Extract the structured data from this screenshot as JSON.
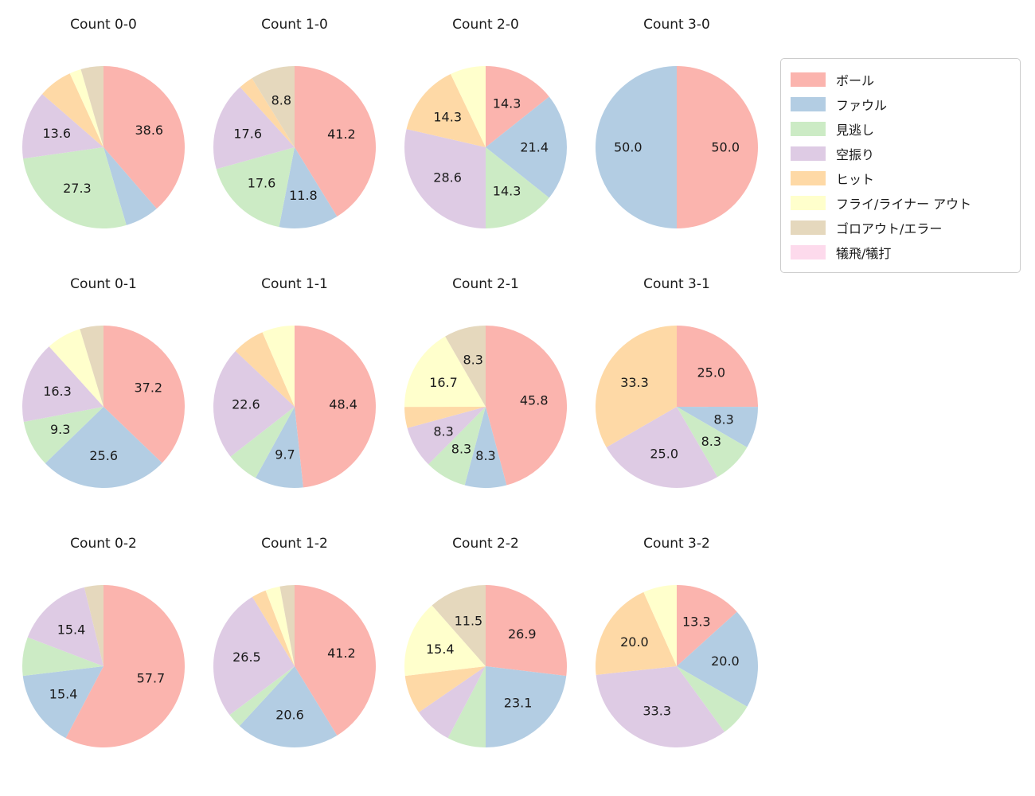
{
  "figure": {
    "background": "#ffffff",
    "text_color": "#1a1a1a",
    "layout": "3 rows x 4 columns of pie charts, legend box upper right outside charts"
  },
  "palette": {
    "ball": "#fbb4ae",
    "foul": "#b3cde3",
    "looking_strike": "#ccebc5",
    "swinging_strike": "#decbe4",
    "hit": "#fed9a6",
    "fly_liner_out": "#ffffcc",
    "ground_out_error": "#e5d8bd",
    "sac_fly_bunt": "#fddaec"
  },
  "legend": {
    "position": "upper-right",
    "border_color": "#cccccc",
    "items": [
      {
        "key": "ball",
        "label": "ボール",
        "color": "#fbb4ae"
      },
      {
        "key": "foul",
        "label": "ファウル",
        "color": "#b3cde3"
      },
      {
        "key": "looking_strike",
        "label": "見逃し",
        "color": "#ccebc5"
      },
      {
        "key": "swinging_strike",
        "label": "空振り",
        "color": "#decbe4"
      },
      {
        "key": "hit",
        "label": "ヒット",
        "color": "#fed9a6"
      },
      {
        "key": "fly_liner_out",
        "label": "フライ/ライナー アウト",
        "color": "#ffffcc"
      },
      {
        "key": "ground_out_error",
        "label": "ゴロアウト/エラー",
        "color": "#e5d8bd"
      },
      {
        "key": "sac_fly_bunt",
        "label": "犠飛/犠打",
        "color": "#fddaec"
      }
    ]
  },
  "chart_data": [
    {
      "type": "pie",
      "title": "Count 0-0",
      "start_angle_deg": 0,
      "direction": "clockwise-from-top",
      "units": "percent",
      "label_distance": 0.6,
      "slices": [
        {
          "key": "ball",
          "value": 38.6,
          "label": "38.6"
        },
        {
          "key": "foul",
          "value": 6.8,
          "label": ""
        },
        {
          "key": "looking_strike",
          "value": 27.3,
          "label": "27.3"
        },
        {
          "key": "swinging_strike",
          "value": 13.6,
          "label": "13.6"
        },
        {
          "key": "hit",
          "value": 6.8,
          "label": ""
        },
        {
          "key": "fly_liner_out",
          "value": 2.3,
          "label": ""
        },
        {
          "key": "ground_out_error",
          "value": 4.5,
          "label": ""
        }
      ]
    },
    {
      "type": "pie",
      "title": "Count 1-0",
      "start_angle_deg": 0,
      "direction": "clockwise-from-top",
      "units": "percent",
      "label_distance": 0.6,
      "slices": [
        {
          "key": "ball",
          "value": 41.2,
          "label": "41.2"
        },
        {
          "key": "foul",
          "value": 11.8,
          "label": "11.8"
        },
        {
          "key": "looking_strike",
          "value": 17.6,
          "label": "17.6"
        },
        {
          "key": "swinging_strike",
          "value": 17.6,
          "label": "17.6"
        },
        {
          "key": "hit",
          "value": 2.9,
          "label": ""
        },
        {
          "key": "ground_out_error",
          "value": 8.8,
          "label": "8.8"
        }
      ]
    },
    {
      "type": "pie",
      "title": "Count 2-0",
      "start_angle_deg": 0,
      "direction": "clockwise-from-top",
      "units": "percent",
      "label_distance": 0.6,
      "slices": [
        {
          "key": "ball",
          "value": 14.3,
          "label": "14.3"
        },
        {
          "key": "foul",
          "value": 21.4,
          "label": "21.4"
        },
        {
          "key": "looking_strike",
          "value": 14.3,
          "label": "14.3"
        },
        {
          "key": "swinging_strike",
          "value": 28.6,
          "label": "28.6"
        },
        {
          "key": "hit",
          "value": 14.3,
          "label": "14.3"
        },
        {
          "key": "fly_liner_out",
          "value": 7.1,
          "label": ""
        }
      ]
    },
    {
      "type": "pie",
      "title": "Count 3-0",
      "start_angle_deg": 0,
      "direction": "clockwise-from-top",
      "units": "percent",
      "label_distance": 0.6,
      "slices": [
        {
          "key": "ball",
          "value": 50.0,
          "label": "50.0"
        },
        {
          "key": "foul",
          "value": 50.0,
          "label": "50.0"
        }
      ]
    },
    {
      "type": "pie",
      "title": "Count 0-1",
      "start_angle_deg": 0,
      "direction": "clockwise-from-top",
      "units": "percent",
      "label_distance": 0.6,
      "slices": [
        {
          "key": "ball",
          "value": 37.2,
          "label": "37.2"
        },
        {
          "key": "foul",
          "value": 25.6,
          "label": "25.6"
        },
        {
          "key": "looking_strike",
          "value": 9.3,
          "label": "9.3"
        },
        {
          "key": "swinging_strike",
          "value": 16.3,
          "label": "16.3"
        },
        {
          "key": "fly_liner_out",
          "value": 7.0,
          "label": ""
        },
        {
          "key": "ground_out_error",
          "value": 4.7,
          "label": ""
        }
      ]
    },
    {
      "type": "pie",
      "title": "Count 1-1",
      "start_angle_deg": 0,
      "direction": "clockwise-from-top",
      "units": "percent",
      "label_distance": 0.6,
      "slices": [
        {
          "key": "ball",
          "value": 48.4,
          "label": "48.4"
        },
        {
          "key": "foul",
          "value": 9.7,
          "label": "9.7"
        },
        {
          "key": "looking_strike",
          "value": 6.5,
          "label": ""
        },
        {
          "key": "swinging_strike",
          "value": 22.6,
          "label": "22.6"
        },
        {
          "key": "hit",
          "value": 6.5,
          "label": ""
        },
        {
          "key": "fly_liner_out",
          "value": 6.5,
          "label": ""
        }
      ]
    },
    {
      "type": "pie",
      "title": "Count 2-1",
      "start_angle_deg": 0,
      "direction": "clockwise-from-top",
      "units": "percent",
      "label_distance": 0.6,
      "slices": [
        {
          "key": "ball",
          "value": 45.8,
          "label": "45.8"
        },
        {
          "key": "foul",
          "value": 8.3,
          "label": "8.3"
        },
        {
          "key": "looking_strike",
          "value": 8.3,
          "label": "8.3"
        },
        {
          "key": "swinging_strike",
          "value": 8.3,
          "label": "8.3"
        },
        {
          "key": "hit",
          "value": 4.2,
          "label": ""
        },
        {
          "key": "fly_liner_out",
          "value": 16.7,
          "label": "16.7"
        },
        {
          "key": "ground_out_error",
          "value": 8.3,
          "label": "8.3"
        }
      ]
    },
    {
      "type": "pie",
      "title": "Count 3-1",
      "start_angle_deg": 0,
      "direction": "clockwise-from-top",
      "units": "percent",
      "label_distance": 0.6,
      "slices": [
        {
          "key": "ball",
          "value": 25.0,
          "label": "25.0"
        },
        {
          "key": "foul",
          "value": 8.3,
          "label": "8.3"
        },
        {
          "key": "looking_strike",
          "value": 8.3,
          "label": "8.3"
        },
        {
          "key": "swinging_strike",
          "value": 25.0,
          "label": "25.0"
        },
        {
          "key": "hit",
          "value": 33.3,
          "label": "33.3"
        }
      ]
    },
    {
      "type": "pie",
      "title": "Count 0-2",
      "start_angle_deg": 0,
      "direction": "clockwise-from-top",
      "units": "percent",
      "label_distance": 0.6,
      "slices": [
        {
          "key": "ball",
          "value": 57.7,
          "label": "57.7"
        },
        {
          "key": "foul",
          "value": 15.4,
          "label": "15.4"
        },
        {
          "key": "looking_strike",
          "value": 7.7,
          "label": ""
        },
        {
          "key": "swinging_strike",
          "value": 15.4,
          "label": "15.4"
        },
        {
          "key": "ground_out_error",
          "value": 3.8,
          "label": ""
        }
      ]
    },
    {
      "type": "pie",
      "title": "Count 1-2",
      "start_angle_deg": 0,
      "direction": "clockwise-from-top",
      "units": "percent",
      "label_distance": 0.6,
      "slices": [
        {
          "key": "ball",
          "value": 41.2,
          "label": "41.2"
        },
        {
          "key": "foul",
          "value": 20.6,
          "label": "20.6"
        },
        {
          "key": "looking_strike",
          "value": 2.9,
          "label": ""
        },
        {
          "key": "swinging_strike",
          "value": 26.5,
          "label": "26.5"
        },
        {
          "key": "hit",
          "value": 2.9,
          "label": ""
        },
        {
          "key": "fly_liner_out",
          "value": 2.9,
          "label": ""
        },
        {
          "key": "ground_out_error",
          "value": 2.9,
          "label": ""
        }
      ]
    },
    {
      "type": "pie",
      "title": "Count 2-2",
      "start_angle_deg": 0,
      "direction": "clockwise-from-top",
      "units": "percent",
      "label_distance": 0.6,
      "slices": [
        {
          "key": "ball",
          "value": 26.9,
          "label": "26.9"
        },
        {
          "key": "foul",
          "value": 23.1,
          "label": "23.1"
        },
        {
          "key": "looking_strike",
          "value": 7.7,
          "label": ""
        },
        {
          "key": "swinging_strike",
          "value": 7.7,
          "label": ""
        },
        {
          "key": "hit",
          "value": 7.7,
          "label": ""
        },
        {
          "key": "fly_liner_out",
          "value": 15.4,
          "label": "15.4"
        },
        {
          "key": "ground_out_error",
          "value": 11.5,
          "label": "11.5"
        }
      ]
    },
    {
      "type": "pie",
      "title": "Count 3-2",
      "start_angle_deg": 0,
      "direction": "clockwise-from-top",
      "units": "percent",
      "label_distance": 0.6,
      "slices": [
        {
          "key": "ball",
          "value": 13.3,
          "label": "13.3"
        },
        {
          "key": "foul",
          "value": 20.0,
          "label": "20.0"
        },
        {
          "key": "looking_strike",
          "value": 6.7,
          "label": ""
        },
        {
          "key": "swinging_strike",
          "value": 33.3,
          "label": "33.3"
        },
        {
          "key": "hit",
          "value": 20.0,
          "label": "20.0"
        },
        {
          "key": "fly_liner_out",
          "value": 6.7,
          "label": ""
        }
      ]
    }
  ]
}
